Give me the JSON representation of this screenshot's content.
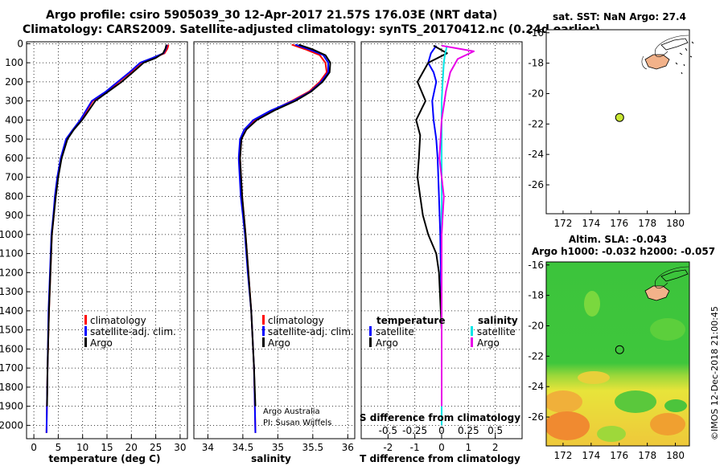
{
  "header": {
    "line1": "Argo profile: csiro 5905039_30 12-Apr-2017 21.57S 176.03E (NRT data)",
    "line2": "Climatology: CARS2009. Satellite-adjusted climatology: synTS_20170412.nc (0.24d earlier)"
  },
  "colors": {
    "climatology": "#ff0000",
    "satellite": "#0000ff",
    "argo": "#000000",
    "s_sat": "#00e5e5",
    "s_argo": "#e800e8",
    "sst_marker": "#c8e632"
  },
  "chart_data": [
    {
      "type": "line",
      "name": "temperature",
      "xlabel": "temperature (deg C)",
      "ylabel": "",
      "xlim": [
        -1.5,
        31.5
      ],
      "ylim": [
        2070,
        -10
      ],
      "xticks": [
        "0",
        "5",
        "10",
        "15",
        "20",
        "25",
        "30"
      ],
      "yticks": [
        "0",
        "100",
        "200",
        "300",
        "400",
        "500",
        "600",
        "700",
        "800",
        "900",
        "1000",
        "1100",
        "1200",
        "1300",
        "1400",
        "1500",
        "1600",
        "1700",
        "1800",
        "1900",
        "2000"
      ],
      "legend": {
        "items": [
          "climatology",
          "satellite-adj. clim.",
          "Argo"
        ],
        "position": "lower-middle"
      },
      "series": [
        {
          "name": "climatology",
          "color": "#ff0000",
          "x": [
            27.6,
            27.4,
            26.8,
            24.5,
            22.0,
            19.8,
            17.4,
            15.0,
            12.1,
            9.6,
            8.1,
            6.7,
            5.6,
            4.9,
            4.4,
            4.1,
            3.7,
            3.4,
            3.1,
            2.8,
            2.6
          ],
          "y": [
            5,
            25,
            50,
            75,
            100,
            150,
            200,
            250,
            300,
            400,
            450,
            500,
            600,
            700,
            800,
            900,
            1000,
            1200,
            1400,
            1700,
            2040
          ]
        },
        {
          "name": "satellite-adj. clim.",
          "color": "#0000ff",
          "x": [
            27.3,
            27.1,
            26.6,
            24.3,
            21.8,
            19.6,
            17.2,
            14.8,
            11.9,
            9.5,
            8.0,
            6.6,
            5.5,
            4.8,
            4.3,
            4.0,
            3.6,
            3.3,
            3.0,
            2.8,
            2.6
          ],
          "y": [
            5,
            25,
            50,
            75,
            100,
            150,
            200,
            250,
            300,
            400,
            450,
            500,
            600,
            700,
            800,
            900,
            1000,
            1200,
            1400,
            1700,
            2040
          ]
        },
        {
          "name": "Argo",
          "color": "#000000",
          "x": [
            27.2,
            27.0,
            26.5,
            25.0,
            22.5,
            20.3,
            18.0,
            15.3,
            12.6,
            9.9,
            8.2,
            6.9,
            5.7,
            5.0,
            4.5,
            4.1,
            3.7,
            3.4,
            3.1,
            2.8,
            2.7
          ],
          "y": [
            5,
            25,
            50,
            75,
            100,
            150,
            200,
            250,
            300,
            400,
            450,
            500,
            600,
            700,
            800,
            900,
            1000,
            1200,
            1400,
            1700,
            1900
          ]
        }
      ]
    },
    {
      "type": "line",
      "name": "salinity",
      "xlabel": "salinity",
      "xlim": [
        33.8,
        36.1
      ],
      "ylim": [
        2070,
        -10
      ],
      "xticks": [
        "34",
        "34.5",
        "35",
        "35.5",
        "36"
      ],
      "legend": {
        "items": [
          "climatology",
          "satellite-adj. clim.",
          "Argo"
        ],
        "position": "lower-right"
      },
      "series": [
        {
          "name": "climatology",
          "color": "#ff0000",
          "x": [
            35.2,
            35.4,
            35.6,
            35.68,
            35.7,
            35.6,
            35.45,
            35.2,
            34.92,
            34.68,
            34.55,
            34.48,
            34.46,
            34.49,
            34.54,
            34.58,
            34.62,
            34.66,
            34.68
          ],
          "y": [
            5,
            30,
            60,
            100,
            150,
            200,
            250,
            300,
            350,
            400,
            450,
            500,
            600,
            800,
            1000,
            1200,
            1400,
            1700,
            2040
          ]
        },
        {
          "name": "satellite-adj. clim.",
          "color": "#0000ff",
          "x": [
            35.25,
            35.45,
            35.65,
            35.72,
            35.72,
            35.62,
            35.47,
            35.22,
            34.9,
            34.65,
            34.52,
            34.46,
            34.44,
            34.47,
            34.53,
            34.57,
            34.62,
            34.66,
            34.68
          ],
          "y": [
            5,
            30,
            60,
            100,
            150,
            200,
            250,
            300,
            350,
            400,
            450,
            500,
            600,
            800,
            1000,
            1200,
            1400,
            1700,
            2040
          ]
        },
        {
          "name": "Argo",
          "color": "#000000",
          "x": [
            35.3,
            35.5,
            35.68,
            35.75,
            35.74,
            35.64,
            35.48,
            35.25,
            34.95,
            34.7,
            34.55,
            34.48,
            34.46,
            34.49,
            34.54,
            34.58,
            34.62,
            34.66,
            34.68
          ],
          "y": [
            5,
            30,
            60,
            100,
            150,
            200,
            250,
            300,
            350,
            400,
            450,
            500,
            600,
            800,
            1000,
            1200,
            1400,
            1700,
            1900
          ]
        }
      ],
      "annotation": [
        "Argo Australia",
        "PI: Susan Wijffels"
      ]
    },
    {
      "type": "line",
      "name": "difference from climatology",
      "xlabel": "T difference from climatology",
      "x2label": "S difference from climatology",
      "xlim": [
        -3,
        3
      ],
      "x2lim": [
        -0.75,
        0.75
      ],
      "ylim": [
        2070,
        -10
      ],
      "xticks": [
        "-2",
        "-1",
        "0",
        "1",
        "2"
      ],
      "x2ticks": [
        "-0.5",
        "-0.25",
        "0",
        "0.25",
        "0.5"
      ],
      "legend_left": {
        "title": "temperature",
        "items": [
          "satellite",
          "Argo"
        ]
      },
      "legend_right": {
        "title": "salinity",
        "items": [
          "satellite",
          "Argo"
        ]
      },
      "series": [
        {
          "name": "temperature satellite",
          "color": "#0000ff",
          "x": [
            -0.2,
            -0.4,
            -0.5,
            -0.3,
            -0.2,
            -0.35,
            -0.3,
            -0.2,
            -0.15,
            -0.1,
            -0.05,
            0,
            0
          ],
          "y": [
            10,
            50,
            100,
            150,
            200,
            300,
            400,
            500,
            600,
            800,
            1000,
            1500,
            2000
          ]
        },
        {
          "name": "temperature Argo",
          "color": "#000000",
          "x": [
            -0.3,
            0.2,
            -0.5,
            -0.9,
            -0.6,
            -0.95,
            -0.8,
            -0.85,
            -0.9,
            -0.8,
            -0.7,
            -0.5,
            -0.2,
            -0.1,
            0,
            0
          ],
          "y": [
            10,
            50,
            100,
            200,
            300,
            400,
            480,
            600,
            700,
            800,
            900,
            1000,
            1100,
            1200,
            1500,
            1900
          ]
        },
        {
          "name": "salinity satellite",
          "color": "#00e5e5",
          "x": [
            0.05,
            0.03,
            0.02,
            0.01,
            0.0,
            0.0,
            0.0,
            0.0,
            0.0,
            0.0,
            0.0
          ],
          "y": [
            10,
            60,
            100,
            200,
            300,
            400,
            600,
            800,
            1000,
            1500,
            2000
          ]
        },
        {
          "name": "salinity Argo",
          "color": "#e800e8",
          "x": [
            0.0,
            0.3,
            0.15,
            0.08,
            0.04,
            0.0,
            -0.02,
            0.02,
            0.0,
            0.0,
            0.0
          ],
          "y": [
            10,
            40,
            80,
            150,
            250,
            400,
            600,
            800,
            1000,
            1500,
            1900
          ]
        }
      ]
    },
    {
      "type": "scatter",
      "name": "position map sst",
      "title": "sat. SST: NaN Argo: 27.4",
      "xlim": [
        170.8,
        181
      ],
      "ylim": [
        -27.9,
        -15.8
      ],
      "xticks": [
        "172",
        "174",
        "176",
        "178",
        "180"
      ],
      "yticks": [
        "-16",
        "-18",
        "-20",
        "-22",
        "-24",
        "-26"
      ],
      "points": [
        {
          "label": "Argo",
          "x": 176.03,
          "y": -21.57
        }
      ]
    },
    {
      "type": "heatmap",
      "name": "position map sla",
      "title": "Altim. SLA: -0.043",
      "subtitle": "Argo h1000: -0.032 h2000: -0.057",
      "xlim": [
        170.8,
        181
      ],
      "ylim": [
        -27.9,
        -15.8
      ],
      "xticks": [
        "172",
        "174",
        "176",
        "178",
        "180"
      ],
      "yticks": [
        "-16",
        "-18",
        "-20",
        "-22",
        "-24",
        "-26"
      ],
      "points": [
        {
          "label": "Argo",
          "x": 176.03,
          "y": -21.57
        }
      ]
    }
  ],
  "footer": "©IMOS 12-Dec-2018 21:00:45"
}
